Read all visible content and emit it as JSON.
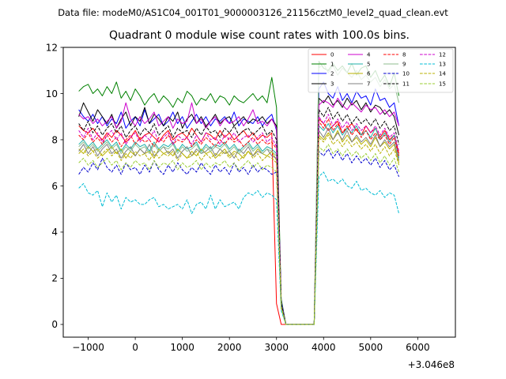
{
  "suptitle": "Data file: modeM0/AS1C04_001T01_9000003126_21156cztM0_level2_quad_clean.evt",
  "chart_data": {
    "type": "line",
    "title": "Quadrant 0 module wise count rates with 100.0s bins.",
    "xlabel": "",
    "ylabel": "",
    "x_offset_label": "+3.046e8",
    "xlim": [
      -1530,
      6800
    ],
    "ylim": [
      -0.55,
      12.0
    ],
    "x_ticks": [
      -1000,
      0,
      1000,
      2000,
      3000,
      4000,
      5000,
      6000
    ],
    "x_tick_labels": [
      "−1000",
      "0",
      "1000",
      "2000",
      "3000",
      "4000",
      "5000",
      "6000"
    ],
    "y_ticks": [
      0,
      2,
      4,
      6,
      8,
      10,
      12
    ],
    "y_tick_labels": [
      "0",
      "2",
      "4",
      "6",
      "8",
      "10",
      "12"
    ],
    "x_start": -1200,
    "x_step": 100,
    "legend_position": "top-right",
    "series": [
      {
        "name": "0",
        "color": "#ff0000",
        "dash": "solid",
        "values": [
          8.6,
          8.4,
          8.3,
          8.5,
          8.2,
          8.0,
          8.3,
          8.1,
          8.4,
          8.2,
          7.9,
          8.1,
          8.4,
          8.0,
          8.2,
          8.3,
          8.1,
          7.9,
          8.2,
          8.4,
          8.0,
          8.2,
          8.3,
          8.1,
          8.5,
          8.2,
          7.9,
          8.3,
          8.2,
          8.0,
          8.4,
          8.1,
          8.3,
          8.0,
          8.2,
          8.4,
          8.1,
          8.3,
          8.0,
          8.2,
          8.1,
          8.3,
          0.9,
          0,
          0,
          0,
          0,
          0,
          0,
          0,
          0,
          8.9,
          8.7,
          8.4,
          8.6,
          8.8,
          8.3,
          8.5,
          8.7,
          8.4,
          8.2,
          8.6,
          8.3,
          8.5,
          8.1,
          8.4,
          8.0,
          8.2,
          7.4
        ]
      },
      {
        "name": "1",
        "color": "#008000",
        "dash": "solid",
        "values": [
          10.1,
          10.3,
          10.4,
          10.0,
          10.2,
          9.9,
          10.3,
          10.0,
          10.5,
          9.8,
          10.1,
          9.7,
          10.2,
          9.9,
          9.5,
          9.8,
          10.0,
          9.6,
          9.9,
          9.7,
          9.4,
          9.8,
          9.6,
          10.1,
          9.9,
          9.5,
          9.8,
          9.7,
          10.0,
          9.6,
          9.9,
          9.8,
          9.5,
          9.9,
          9.7,
          9.6,
          9.8,
          10.0,
          9.7,
          9.9,
          9.6,
          10.7,
          9.4,
          1.1,
          0,
          0,
          0,
          0,
          0,
          0,
          0,
          11.4,
          11.1,
          11.0,
          11.3,
          11.0,
          11.2,
          10.9,
          11.3,
          10.8,
          11.1,
          11.2,
          10.7,
          11.0,
          10.5,
          10.8,
          10.3,
          10.9,
          9.9
        ]
      },
      {
        "name": "2",
        "color": "#0000ff",
        "dash": "solid",
        "values": [
          9.3,
          9.0,
          8.8,
          9.1,
          8.7,
          9.0,
          8.6,
          8.9,
          8.7,
          9.2,
          8.5,
          8.8,
          9.0,
          8.6,
          9.3,
          8.7,
          8.9,
          9.1,
          8.6,
          8.8,
          9.2,
          8.7,
          9.0,
          8.5,
          8.8,
          9.1,
          8.7,
          9.0,
          8.6,
          8.9,
          8.8,
          9.0,
          8.7,
          9.2,
          8.6,
          8.9,
          8.8,
          8.7,
          9.0,
          8.6,
          8.9,
          9.1,
          8.4,
          1.0,
          0,
          0,
          0,
          0,
          0,
          0,
          0,
          10.2,
          10.5,
          10.0,
          9.8,
          10.3,
          9.7,
          10.0,
          9.6,
          10.1,
          9.8,
          9.9,
          9.5,
          10.2,
          9.7,
          9.8,
          9.4,
          9.6,
          8.6
        ]
      },
      {
        "name": "3",
        "color": "#000000",
        "dash": "solid",
        "values": [
          9.0,
          9.6,
          9.2,
          8.8,
          9.3,
          9.0,
          8.7,
          9.1,
          8.5,
          8.9,
          9.2,
          8.6,
          9.0,
          8.8,
          9.4,
          8.7,
          9.1,
          8.9,
          8.6,
          9.0,
          8.8,
          9.2,
          8.5,
          8.9,
          9.1,
          8.7,
          9.0,
          8.6,
          8.8,
          9.1,
          8.7,
          8.9,
          9.0,
          8.6,
          8.8,
          9.0,
          8.7,
          8.9,
          8.8,
          9.0,
          8.7,
          8.9,
          8.6,
          0.9,
          0,
          0,
          0,
          0,
          0,
          0,
          0,
          9.8,
          9.6,
          9.9,
          9.5,
          9.7,
          9.4,
          9.8,
          9.5,
          9.7,
          9.3,
          9.6,
          9.2,
          9.5,
          9.4,
          9.1,
          9.3,
          9.0,
          8.2
        ]
      },
      {
        "name": "4",
        "color": "#cc00cc",
        "dash": "solid",
        "values": [
          9.1,
          8.9,
          9.0,
          8.7,
          8.9,
          8.6,
          8.8,
          9.0,
          8.5,
          8.8,
          9.6,
          8.9,
          8.6,
          9.0,
          8.7,
          8.9,
          9.2,
          8.6,
          8.8,
          9.0,
          8.5,
          8.9,
          8.7,
          8.8,
          9.6,
          8.7,
          8.9,
          8.5,
          8.8,
          9.0,
          8.6,
          8.9,
          8.7,
          8.8,
          9.0,
          8.6,
          8.9,
          9.3,
          8.7,
          8.8,
          8.6,
          8.9,
          8.5,
          0.9,
          0,
          0,
          0,
          0,
          0,
          0,
          0,
          9.5,
          9.7,
          9.6,
          9.4,
          9.8,
          9.5,
          9.3,
          9.6,
          9.4,
          9.2,
          9.5,
          9.3,
          9.4,
          9.1,
          9.3,
          9.0,
          9.2,
          8.6
        ]
      },
      {
        "name": "5",
        "color": "#20b2aa",
        "dash": "solid",
        "values": [
          7.8,
          8.0,
          7.7,
          7.9,
          7.6,
          7.8,
          8.0,
          7.7,
          7.9,
          7.5,
          7.8,
          7.6,
          7.9,
          7.7,
          7.8,
          7.5,
          7.9,
          7.6,
          7.8,
          7.7,
          7.9,
          7.5,
          7.8,
          7.6,
          7.7,
          7.9,
          7.5,
          7.8,
          7.6,
          7.8,
          7.7,
          7.9,
          7.6,
          7.8,
          7.5,
          7.7,
          7.9,
          7.6,
          7.8,
          7.5,
          7.7,
          7.6,
          7.4,
          0.8,
          0,
          0,
          0,
          0,
          0,
          0,
          0,
          8.6,
          8.4,
          8.7,
          8.3,
          8.6,
          8.2,
          8.5,
          8.3,
          8.6,
          8.2,
          8.4,
          8.1,
          8.5,
          8.0,
          8.3,
          7.9,
          8.2,
          7.2
        ]
      },
      {
        "name": "6",
        "color": "#b8b000",
        "dash": "solid",
        "values": [
          7.6,
          7.4,
          7.7,
          7.5,
          7.6,
          7.3,
          7.5,
          7.7,
          7.4,
          7.6,
          7.2,
          7.5,
          7.3,
          7.6,
          7.4,
          7.5,
          7.2,
          7.6,
          7.4,
          7.5,
          7.3,
          7.6,
          7.4,
          7.2,
          7.5,
          7.3,
          7.6,
          7.4,
          7.5,
          7.2,
          7.4,
          7.6,
          7.3,
          7.5,
          7.4,
          7.2,
          7.5,
          7.3,
          7.6,
          7.4,
          7.3,
          7.5,
          7.1,
          0.8,
          0,
          0,
          0,
          0,
          0,
          0,
          0,
          8.2,
          8.0,
          8.3,
          8.0,
          8.4,
          7.9,
          8.2,
          7.9,
          8.1,
          7.8,
          8.0,
          7.7,
          8.1,
          7.7,
          7.9,
          7.6,
          7.8,
          7.0
        ]
      },
      {
        "name": "7",
        "color": "#808080",
        "dash": "solid",
        "values": [
          7.5,
          7.8,
          7.4,
          7.7,
          7.3,
          7.6,
          7.8,
          7.4,
          7.6,
          7.2,
          7.5,
          7.7,
          7.3,
          7.6,
          7.4,
          7.8,
          7.3,
          7.5,
          7.7,
          7.4,
          7.6,
          7.2,
          7.5,
          7.7,
          7.3,
          7.6,
          7.4,
          7.5,
          7.7,
          7.3,
          7.6,
          7.4,
          7.5,
          7.2,
          7.6,
          7.4,
          7.7,
          7.3,
          7.5,
          7.4,
          7.6,
          7.3,
          7.2,
          0.8,
          0,
          0,
          0,
          0,
          0,
          0,
          0,
          8.4,
          8.1,
          8.5,
          8.0,
          8.3,
          8.0,
          8.4,
          7.9,
          8.2,
          7.9,
          8.1,
          7.8,
          8.2,
          7.7,
          8.0,
          7.7,
          7.9,
          7.1
        ]
      },
      {
        "name": "8",
        "color": "#ff0000",
        "dash": "dashed",
        "values": [
          8.2,
          8.0,
          8.3,
          7.9,
          8.1,
          7.8,
          8.2,
          7.9,
          8.1,
          7.7,
          8.0,
          8.2,
          7.8,
          8.1,
          7.9,
          8.0,
          7.7,
          8.1,
          7.9,
          8.2,
          7.8,
          8.0,
          7.9,
          8.1,
          7.7,
          8.0,
          7.8,
          8.1,
          7.9,
          7.7,
          8.0,
          7.8,
          8.1,
          7.9,
          8.0,
          7.7,
          7.9,
          8.1,
          7.8,
          8.0,
          7.8,
          7.9,
          7.6,
          0.8,
          0,
          0,
          0,
          0,
          0,
          0,
          0,
          8.8,
          8.5,
          8.9,
          8.4,
          8.7,
          8.3,
          8.6,
          8.2,
          8.5,
          8.1,
          8.4,
          8.0,
          8.3,
          8.0,
          8.2,
          7.8,
          8.1,
          7.3
        ]
      },
      {
        "name": "9",
        "color": "#8fbc8f",
        "dash": "solid",
        "values": [
          7.7,
          7.9,
          7.6,
          7.8,
          7.5,
          7.7,
          7.9,
          7.6,
          7.8,
          7.4,
          7.7,
          7.5,
          7.8,
          7.6,
          7.7,
          7.4,
          7.8,
          7.5,
          7.7,
          7.6,
          7.8,
          7.4,
          7.7,
          7.5,
          7.6,
          7.8,
          7.4,
          7.7,
          7.5,
          7.7,
          7.6,
          7.8,
          7.5,
          7.7,
          7.4,
          7.6,
          7.8,
          7.5,
          7.7,
          7.4,
          7.6,
          7.5,
          7.3,
          0.8,
          0,
          0,
          0,
          0,
          0,
          0,
          0,
          11.1,
          11.3,
          10.9,
          11.2,
          10.8,
          11.1,
          10.9,
          10.7,
          11.0,
          10.6,
          10.8,
          10.5,
          10.7,
          10.3,
          10.6,
          10.2,
          10.4,
          9.6
        ]
      },
      {
        "name": "10",
        "color": "#0000cd",
        "dash": "dashed",
        "values": [
          6.5,
          6.8,
          6.6,
          7.0,
          6.7,
          7.2,
          6.8,
          6.6,
          6.9,
          6.5,
          7.0,
          6.7,
          6.8,
          6.5,
          6.9,
          6.6,
          7.1,
          6.7,
          6.5,
          6.9,
          6.6,
          7.0,
          6.7,
          6.5,
          6.8,
          6.6,
          7.0,
          6.7,
          6.5,
          6.9,
          6.6,
          6.8,
          6.5,
          7.0,
          6.6,
          6.8,
          6.5,
          6.9,
          6.6,
          6.8,
          6.7,
          6.5,
          6.6,
          0.7,
          0,
          0,
          0,
          0,
          0,
          0,
          0,
          7.5,
          7.3,
          7.6,
          7.2,
          7.5,
          7.1,
          7.4,
          7.0,
          7.3,
          7.0,
          7.2,
          6.9,
          7.2,
          6.8,
          7.1,
          6.7,
          6.9,
          6.4
        ]
      },
      {
        "name": "11",
        "color": "#000000",
        "dash": "dashed",
        "values": [
          8.7,
          8.4,
          8.8,
          8.3,
          8.6,
          8.2,
          8.5,
          8.7,
          8.3,
          8.6,
          8.1,
          8.4,
          8.6,
          8.2,
          8.5,
          8.3,
          8.7,
          8.2,
          8.4,
          8.6,
          8.1,
          8.5,
          8.3,
          8.4,
          8.1,
          8.5,
          8.2,
          8.6,
          8.3,
          8.4,
          8.1,
          8.5,
          8.3,
          8.6,
          8.2,
          8.4,
          8.5,
          8.2,
          8.4,
          8.6,
          8.2,
          8.4,
          8.0,
          0.9,
          0,
          0,
          0,
          0,
          0,
          0,
          0,
          9.3,
          9.0,
          9.4,
          8.9,
          9.2,
          8.8,
          9.1,
          8.7,
          9.0,
          8.7,
          8.9,
          8.6,
          8.9,
          8.5,
          8.8,
          8.4,
          8.6,
          7.8
        ]
      },
      {
        "name": "12",
        "color": "#cc00cc",
        "dash": "dashed",
        "values": [
          8.4,
          8.1,
          8.5,
          8.0,
          8.3,
          7.9,
          8.2,
          8.4,
          8.0,
          8.3,
          7.8,
          8.1,
          8.3,
          7.9,
          8.2,
          8.0,
          8.4,
          7.9,
          8.1,
          8.3,
          7.8,
          8.2,
          8.0,
          8.1,
          7.8,
          8.2,
          7.9,
          8.3,
          8.0,
          8.1,
          7.8,
          8.2,
          8.0,
          8.3,
          7.9,
          8.1,
          8.2,
          7.9,
          8.1,
          8.3,
          7.9,
          8.1,
          7.7,
          0.8,
          0,
          0,
          0,
          0,
          0,
          0,
          0,
          9.0,
          8.7,
          9.1,
          8.6,
          8.9,
          8.5,
          8.8,
          8.4,
          8.7,
          8.4,
          8.6,
          8.3,
          8.6,
          8.2,
          8.5,
          8.1,
          8.3,
          7.5
        ]
      },
      {
        "name": "13",
        "color": "#00bcd4",
        "dash": "dashed",
        "values": [
          5.9,
          6.1,
          5.7,
          5.6,
          5.8,
          5.1,
          5.7,
          5.3,
          5.6,
          5.0,
          5.5,
          5.3,
          5.4,
          5.2,
          5.2,
          5.4,
          5.5,
          5.1,
          5.2,
          5.0,
          5.1,
          5.2,
          5.0,
          5.4,
          4.8,
          5.2,
          5.3,
          5.0,
          5.6,
          5.0,
          5.4,
          5.1,
          5.2,
          5.3,
          5.0,
          5.5,
          5.7,
          5.6,
          5.8,
          5.5,
          5.7,
          5.6,
          5.4,
          0.6,
          0,
          0,
          0,
          0,
          0,
          0,
          0,
          6.4,
          6.6,
          6.2,
          6.3,
          6.1,
          6.3,
          6.0,
          5.9,
          6.2,
          5.8,
          5.9,
          5.7,
          5.6,
          5.8,
          5.5,
          5.7,
          5.6,
          4.8
        ]
      },
      {
        "name": "14",
        "color": "#b8b000",
        "dash": "dashed",
        "values": [
          7.4,
          7.6,
          7.3,
          7.5,
          7.2,
          7.4,
          7.6,
          7.3,
          7.5,
          7.1,
          7.4,
          7.2,
          7.5,
          7.3,
          7.4,
          7.1,
          7.5,
          7.2,
          7.4,
          7.3,
          7.5,
          7.1,
          7.4,
          7.2,
          7.3,
          7.5,
          7.1,
          7.4,
          7.2,
          7.4,
          7.3,
          7.5,
          7.2,
          7.4,
          7.1,
          7.3,
          7.5,
          7.2,
          7.4,
          7.1,
          7.3,
          7.2,
          7.0,
          0.8,
          0,
          0,
          0,
          0,
          0,
          0,
          0,
          8.1,
          7.9,
          8.2,
          7.8,
          8.0,
          7.7,
          8.0,
          7.7,
          7.9,
          7.6,
          7.8,
          7.5,
          7.8,
          7.4,
          7.7,
          7.3,
          7.6,
          6.9
        ]
      },
      {
        "name": "15",
        "color": "#9acd32",
        "dash": "dashed",
        "values": [
          7.0,
          7.2,
          6.9,
          7.1,
          6.8,
          7.0,
          7.2,
          6.9,
          7.1,
          6.7,
          7.0,
          6.8,
          7.1,
          6.9,
          7.0,
          6.7,
          7.1,
          6.8,
          7.0,
          6.9,
          7.1,
          6.7,
          7.0,
          6.8,
          6.9,
          7.1,
          6.7,
          7.0,
          6.8,
          7.0,
          6.9,
          7.1,
          6.8,
          7.0,
          6.7,
          6.9,
          7.1,
          6.8,
          7.0,
          6.7,
          6.9,
          6.8,
          6.6,
          0.7,
          0,
          0,
          0,
          0,
          0,
          0,
          0,
          7.7,
          7.5,
          7.8,
          7.4,
          7.6,
          7.3,
          7.6,
          7.3,
          7.5,
          7.2,
          7.4,
          7.1,
          7.4,
          7.0,
          7.3,
          6.9,
          7.2,
          6.6
        ]
      }
    ]
  }
}
